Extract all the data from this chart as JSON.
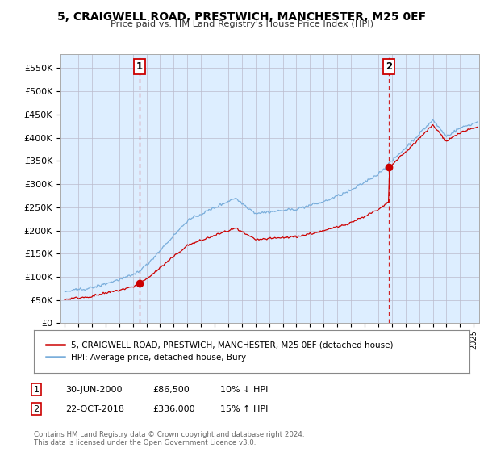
{
  "title": "5, CRAIGWELL ROAD, PRESTWICH, MANCHESTER, M25 0EF",
  "subtitle": "Price paid vs. HM Land Registry's House Price Index (HPI)",
  "ylabel_ticks": [
    "£0",
    "£50K",
    "£100K",
    "£150K",
    "£200K",
    "£250K",
    "£300K",
    "£350K",
    "£400K",
    "£450K",
    "£500K",
    "£550K"
  ],
  "ytick_values": [
    0,
    50000,
    100000,
    150000,
    200000,
    250000,
    300000,
    350000,
    400000,
    450000,
    500000,
    550000
  ],
  "ylim": [
    0,
    580000
  ],
  "xlim_start": 1994.7,
  "xlim_end": 2025.4,
  "xtick_years": [
    1995,
    1996,
    1997,
    1998,
    1999,
    2000,
    2001,
    2002,
    2003,
    2004,
    2005,
    2006,
    2007,
    2008,
    2009,
    2010,
    2011,
    2012,
    2013,
    2014,
    2015,
    2016,
    2017,
    2018,
    2019,
    2020,
    2021,
    2022,
    2023,
    2024,
    2025
  ],
  "property_color": "#cc0000",
  "hpi_color": "#7aaedb",
  "hpi_bg_color": "#ddeeff",
  "purchase1_date": 2000.5,
  "purchase1_price": 86500,
  "purchase2_date": 2018.8,
  "purchase2_price": 336000,
  "legend_property": "5, CRAIGWELL ROAD, PRESTWICH, MANCHESTER, M25 0EF (detached house)",
  "legend_hpi": "HPI: Average price, detached house, Bury",
  "purchase1_info1": "30-JUN-2000",
  "purchase1_info2": "£86,500",
  "purchase1_info3": "10% ↓ HPI",
  "purchase2_info1": "22-OCT-2018",
  "purchase2_info2": "£336,000",
  "purchase2_info3": "15% ↑ HPI",
  "footnote": "Contains HM Land Registry data © Crown copyright and database right 2024.\nThis data is licensed under the Open Government Licence v3.0.",
  "background_color": "#ffffff"
}
